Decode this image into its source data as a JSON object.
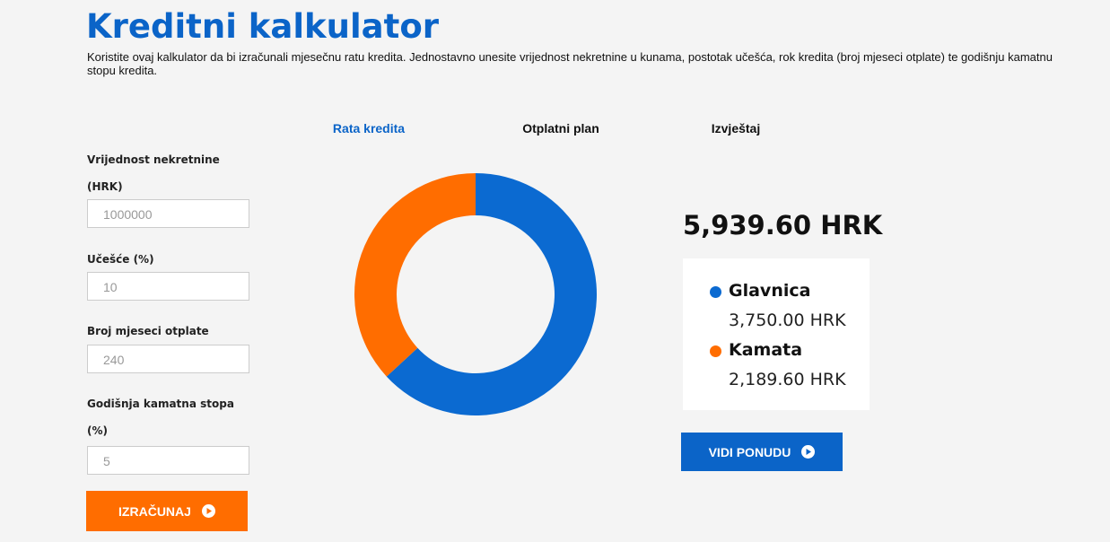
{
  "header": {
    "title": "Kreditni kalkulator",
    "description": "Koristite ovaj kalkulator da bi izračunali mjesečnu ratu kredita. Jednostavno unesite vrijednost nekretnine u kunama, postotak učešća, rok kredita (broj mjeseci otplate) te godišnju kamatnu stopu kredita."
  },
  "form": {
    "fields": [
      {
        "label": [
          "Vrijednost nekretnine",
          "(HRK)"
        ],
        "value": "1000000"
      },
      {
        "label": [
          "Učešće (%)"
        ],
        "value": "10"
      },
      {
        "label": [
          "Broj mjeseci otplate"
        ],
        "value": "240"
      },
      {
        "label": [
          "Godišnja kamatna stopa",
          "(%)"
        ],
        "value": "5"
      }
    ],
    "button": "IZRAČUNAJ"
  },
  "tabs": [
    "Rata kredita",
    "Otplatni plan",
    "Izvještaj"
  ],
  "result": {
    "total": "5,939.60 HRK",
    "button": "VIDI PONUDU"
  },
  "chart_data": {
    "type": "pie",
    "donut": true,
    "categories": [
      "Glavnica",
      "Kamata"
    ],
    "values": [
      3750,
      2189.6
    ],
    "value_labels": [
      "3,750.00 HRK",
      "2,189.60 HRK"
    ],
    "colors": [
      "#0b6ad1",
      "#ff6d00"
    ]
  }
}
